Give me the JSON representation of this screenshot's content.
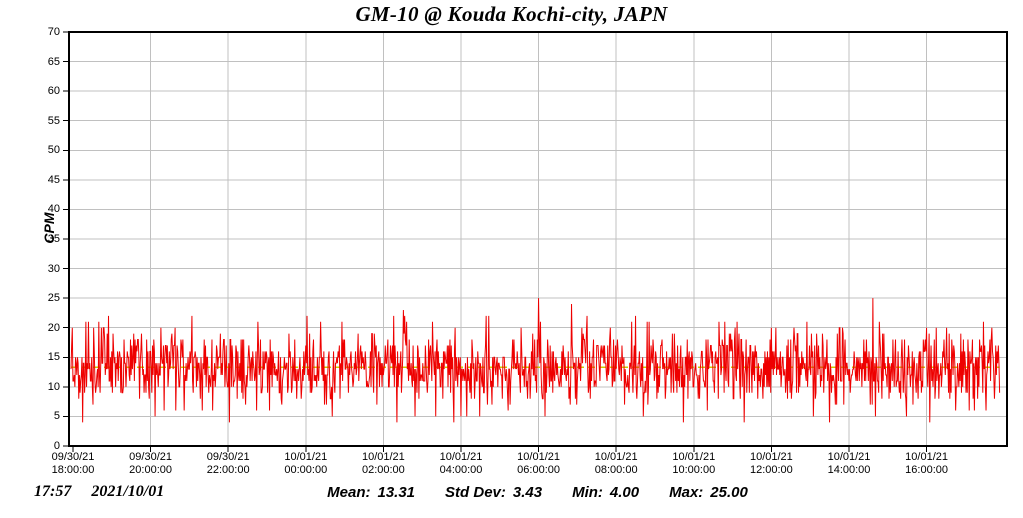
{
  "title": "GM-10 @ Kouda Kochi-city, JAPN",
  "chart_data": {
    "type": "line",
    "title": "GM-10 @ Kouda Kochi-city, JAPN",
    "xlabel": "",
    "ylabel": "CPM",
    "ylim": [
      0,
      70
    ],
    "ytick_step": 5,
    "ytick_labels": [
      "0",
      "5",
      "10",
      "15",
      "20",
      "25",
      "30",
      "35",
      "40",
      "45",
      "50",
      "55",
      "60",
      "65",
      "70"
    ],
    "x_ticks": [
      {
        "date": "09/30/21",
        "time": "18:00:00"
      },
      {
        "date": "09/30/21",
        "time": "20:00:00"
      },
      {
        "date": "09/30/21",
        "time": "22:00:00"
      },
      {
        "date": "10/01/21",
        "time": "00:00:00"
      },
      {
        "date": "10/01/21",
        "time": "02:00:00"
      },
      {
        "date": "10/01/21",
        "time": "04:00:00"
      },
      {
        "date": "10/01/21",
        "time": "06:00:00"
      },
      {
        "date": "10/01/21",
        "time": "08:00:00"
      },
      {
        "date": "10/01/21",
        "time": "10:00:00"
      },
      {
        "date": "10/01/21",
        "time": "12:00:00"
      },
      {
        "date": "10/01/21",
        "time": "14:00:00"
      },
      {
        "date": "10/01/21",
        "time": "16:00:00"
      }
    ],
    "x_tick_interval_minutes": 120,
    "grid": true,
    "grid_color": "#c0c0c0",
    "axis_color": "#000000",
    "series": [
      {
        "name": "CPM",
        "color": "#ee0000",
        "n_points": 1437,
        "sample_interval_minutes": 1,
        "distribution": "normal-integer",
        "mean": 13.31,
        "std_dev": 3.43,
        "min": 4,
        "max": 25,
        "seed": 20211001,
        "max_at_fraction": 0.503,
        "min_at_fraction": 0.412
      }
    ],
    "mean_line": {
      "value": 13.31,
      "color": "#cccc00",
      "style": "dashed"
    },
    "legend": null,
    "stats": {
      "mean": 13.31,
      "std_dev": 3.43,
      "min": 4.0,
      "max": 25.0
    }
  },
  "footer": {
    "time": "17:57",
    "date": "2021/10/01",
    "stats": [
      {
        "label": "Mean:",
        "value": "13.31"
      },
      {
        "label": "Std Dev:",
        "value": "3.43"
      },
      {
        "label": "Min:",
        "value": "4.00"
      },
      {
        "label": "Max:",
        "value": "25.00"
      }
    ]
  }
}
